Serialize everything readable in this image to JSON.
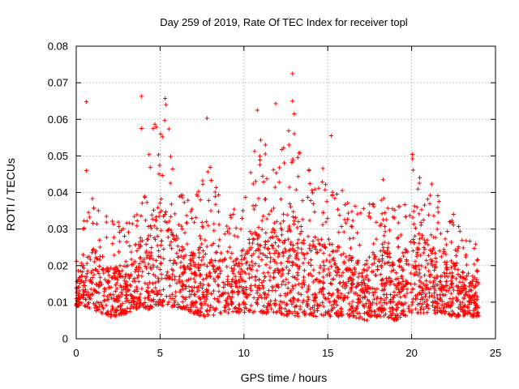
{
  "chart_data": {
    "type": "scatter",
    "title": "Day 259 of 2019, Rate Of TEC Index for receiver topl",
    "xlabel": "GPS time / hours",
    "ylabel": "ROTI / TECUs",
    "xlim": [
      0,
      25
    ],
    "ylim": [
      0,
      0.08
    ],
    "x_ticks": [
      0,
      5,
      10,
      15,
      20,
      25
    ],
    "y_ticks": [
      0,
      0.01,
      0.02,
      0.03,
      0.04,
      0.05,
      0.06,
      0.07,
      0.08
    ],
    "x_tick_labels": [
      "0",
      "5",
      "10",
      "15",
      "20",
      "25"
    ],
    "y_tick_labels": [
      "0",
      "0.01",
      "0.02",
      "0.03",
      "0.04",
      "0.05",
      "0.06",
      "0.07",
      "0.08"
    ],
    "grid": true,
    "marker": "plus",
    "color": "#ff0000",
    "envelope_series": {
      "x": [
        0,
        0.5,
        1,
        1.5,
        2,
        2.5,
        3,
        3.5,
        4,
        4.5,
        5,
        5.5,
        6,
        6.5,
        7,
        7.5,
        8,
        8.5,
        9,
        9.5,
        10,
        10.5,
        11,
        11.5,
        12,
        12.5,
        13,
        13.5,
        14,
        14.5,
        15,
        15.5,
        16,
        16.5,
        17,
        17.5,
        18,
        18.5,
        19,
        19.5,
        20,
        20.5,
        21,
        21.5,
        22,
        22.5,
        23,
        23.5,
        24
      ],
      "low": [
        0.009,
        0.009,
        0.008,
        0.007,
        0.006,
        0.006,
        0.007,
        0.008,
        0.008,
        0.008,
        0.009,
        0.009,
        0.008,
        0.008,
        0.007,
        0.006,
        0.006,
        0.007,
        0.007,
        0.007,
        0.007,
        0.007,
        0.007,
        0.007,
        0.007,
        0.006,
        0.006,
        0.006,
        0.006,
        0.006,
        0.006,
        0.006,
        0.006,
        0.006,
        0.005,
        0.005,
        0.006,
        0.006,
        0.005,
        0.006,
        0.007,
        0.007,
        0.007,
        0.007,
        0.007,
        0.006,
        0.006,
        0.006,
        0.006
      ],
      "typical_high": [
        0.016,
        0.022,
        0.026,
        0.022,
        0.02,
        0.02,
        0.02,
        0.022,
        0.026,
        0.034,
        0.04,
        0.036,
        0.028,
        0.024,
        0.024,
        0.026,
        0.028,
        0.024,
        0.022,
        0.022,
        0.024,
        0.03,
        0.034,
        0.03,
        0.03,
        0.034,
        0.034,
        0.03,
        0.028,
        0.028,
        0.028,
        0.026,
        0.024,
        0.022,
        0.022,
        0.024,
        0.024,
        0.024,
        0.022,
        0.024,
        0.03,
        0.03,
        0.026,
        0.026,
        0.024,
        0.022,
        0.02,
        0.018,
        0.016
      ]
    },
    "notable_points": [
      {
        "x": 0.6,
        "y": 0.0648
      },
      {
        "x": 0.6,
        "y": 0.046
      },
      {
        "x": 3.9,
        "y": 0.0663
      },
      {
        "x": 3.9,
        "y": 0.0575
      },
      {
        "x": 5.3,
        "y": 0.0657
      },
      {
        "x": 5.35,
        "y": 0.064
      },
      {
        "x": 7.8,
        "y": 0.0603
      },
      {
        "x": 10.8,
        "y": 0.0625
      },
      {
        "x": 11.9,
        "y": 0.0643
      },
      {
        "x": 12.9,
        "y": 0.0725
      },
      {
        "x": 12.9,
        "y": 0.065
      },
      {
        "x": 13.0,
        "y": 0.0615
      },
      {
        "x": 15.2,
        "y": 0.0555
      },
      {
        "x": 18.3,
        "y": 0.0435
      }
    ]
  }
}
